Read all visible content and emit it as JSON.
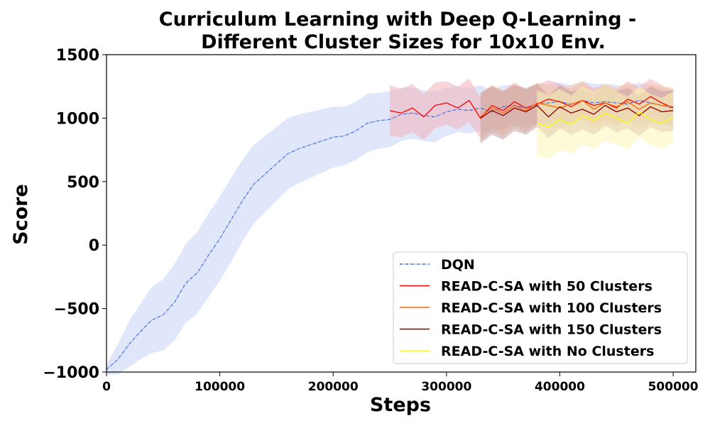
{
  "chart_data": {
    "type": "line",
    "title_lines": [
      "Curriculum Learning with Deep Q-Learning -",
      "Different Cluster Sizes for 10x10 Env."
    ],
    "xlabel": "Steps",
    "ylabel": "Score",
    "xlim": [
      0,
      520000
    ],
    "ylim": [
      -1000,
      1500
    ],
    "xticks": [
      0,
      100000,
      200000,
      300000,
      400000,
      500000
    ],
    "xtick_labels": [
      "0",
      "100000",
      "200000",
      "300000",
      "400000",
      "500000"
    ],
    "yticks": [
      -1000,
      -500,
      0,
      500,
      1000,
      1500
    ],
    "ytick_labels": [
      "−1000",
      "−500",
      "0",
      "500",
      "1000",
      "1500"
    ],
    "legend_position": "lower-right",
    "series": [
      {
        "name": "DQN",
        "color": "#4169e1",
        "band_color": "#c6d4f5",
        "dashed": true,
        "x": [
          0,
          10000,
          20000,
          30000,
          40000,
          50000,
          60000,
          70000,
          80000,
          90000,
          100000,
          110000,
          120000,
          130000,
          140000,
          150000,
          160000,
          170000,
          180000,
          190000,
          200000,
          210000,
          220000,
          230000,
          240000,
          250000,
          260000,
          270000,
          280000,
          290000,
          300000,
          310000,
          320000,
          330000,
          340000,
          350000,
          360000,
          370000,
          380000,
          390000,
          400000,
          410000,
          420000,
          430000,
          440000,
          450000,
          460000,
          470000,
          480000,
          490000,
          500000
        ],
        "y": [
          -980,
          -900,
          -780,
          -680,
          -590,
          -550,
          -450,
          -300,
          -220,
          -80,
          50,
          200,
          350,
          480,
          560,
          640,
          720,
          760,
          790,
          820,
          850,
          860,
          900,
          960,
          980,
          990,
          1030,
          1040,
          1020,
          1010,
          1050,
          1070,
          1060,
          1080,
          1050,
          1090,
          1100,
          1080,
          1110,
          1120,
          1130,
          1110,
          1140,
          1120,
          1130,
          1120,
          1110,
          1140,
          1120,
          1100,
          1080
        ],
        "spread": [
          40,
          120,
          180,
          220,
          260,
          280,
          300,
          310,
          320,
          330,
          330,
          330,
          320,
          310,
          300,
          290,
          280,
          270,
          260,
          250,
          240,
          230,
          230,
          230,
          220,
          220,
          210,
          200,
          200,
          200,
          190,
          180,
          180,
          180,
          170,
          170,
          160,
          160,
          160,
          150,
          150,
          150,
          150,
          150,
          140,
          140,
          140,
          140,
          140,
          140,
          140
        ]
      },
      {
        "name": "READ-C-SA with 50 Clusters",
        "color": "#ff0000",
        "band_color": "#f2b3b8",
        "dashed": false,
        "x": [
          250000,
          260000,
          270000,
          280000,
          290000,
          300000,
          310000,
          320000,
          330000,
          340000,
          350000,
          360000,
          370000,
          380000,
          390000,
          400000,
          410000,
          420000,
          430000,
          440000,
          450000,
          460000,
          470000,
          480000,
          490000,
          500000
        ],
        "y": [
          1060,
          1040,
          1080,
          1010,
          1100,
          1120,
          1080,
          1140,
          1000,
          1100,
          1060,
          1130,
          1080,
          1110,
          1150,
          1130,
          1090,
          1140,
          1100,
          1120,
          1080,
          1150,
          1110,
          1170,
          1120,
          1080
        ],
        "spread": [
          200,
          190,
          190,
          180,
          180,
          170,
          170,
          170,
          160,
          160,
          160,
          150,
          150,
          150,
          150,
          140,
          140,
          140,
          140,
          140,
          140,
          140,
          140,
          140,
          140,
          140
        ]
      },
      {
        "name": "READ-C-SA with 100 Clusters",
        "color": "#ff6a00",
        "band_color": "#f5c9a8",
        "dashed": false,
        "x": [
          330000,
          340000,
          350000,
          360000,
          370000,
          380000,
          390000,
          400000,
          410000,
          420000,
          430000,
          440000,
          450000,
          460000,
          470000,
          480000,
          490000,
          500000
        ],
        "y": [
          1010,
          1080,
          1040,
          1100,
          1060,
          1120,
          1100,
          1080,
          1110,
          1140,
          1070,
          1120,
          1090,
          1130,
          1070,
          1120,
          1100,
          1090
        ],
        "spread": [
          190,
          180,
          180,
          170,
          170,
          160,
          160,
          160,
          150,
          150,
          150,
          150,
          150,
          150,
          150,
          150,
          150,
          150
        ]
      },
      {
        "name": "READ-C-SA with 150 Clusters",
        "color": "#8b0000",
        "band_color": "#c7a0a3",
        "dashed": false,
        "x": [
          330000,
          340000,
          350000,
          360000,
          370000,
          380000,
          390000,
          400000,
          410000,
          420000,
          430000,
          440000,
          450000,
          460000,
          470000,
          480000,
          490000,
          500000
        ],
        "y": [
          1000,
          1060,
          1020,
          1080,
          1050,
          1100,
          1010,
          1090,
          1040,
          1070,
          1030,
          1100,
          1050,
          1080,
          1020,
          1090,
          1050,
          1060
        ],
        "spread": [
          200,
          190,
          190,
          180,
          180,
          170,
          170,
          170,
          170,
          160,
          160,
          160,
          160,
          160,
          160,
          160,
          160,
          160
        ]
      },
      {
        "name": "READ-C-SA with No Clusters",
        "color": "#ffff00",
        "band_color": "#fbf5b8",
        "dashed": false,
        "x": [
          380000,
          390000,
          400000,
          410000,
          420000,
          430000,
          440000,
          450000,
          460000,
          470000,
          480000,
          490000,
          500000
        ],
        "y": [
          960,
          930,
          990,
          950,
          1020,
          980,
          1040,
          1000,
          960,
          1050,
          990,
          960,
          1010
        ],
        "spread": [
          260,
          250,
          240,
          230,
          230,
          220,
          220,
          210,
          210,
          200,
          200,
          200,
          200
        ]
      }
    ]
  }
}
